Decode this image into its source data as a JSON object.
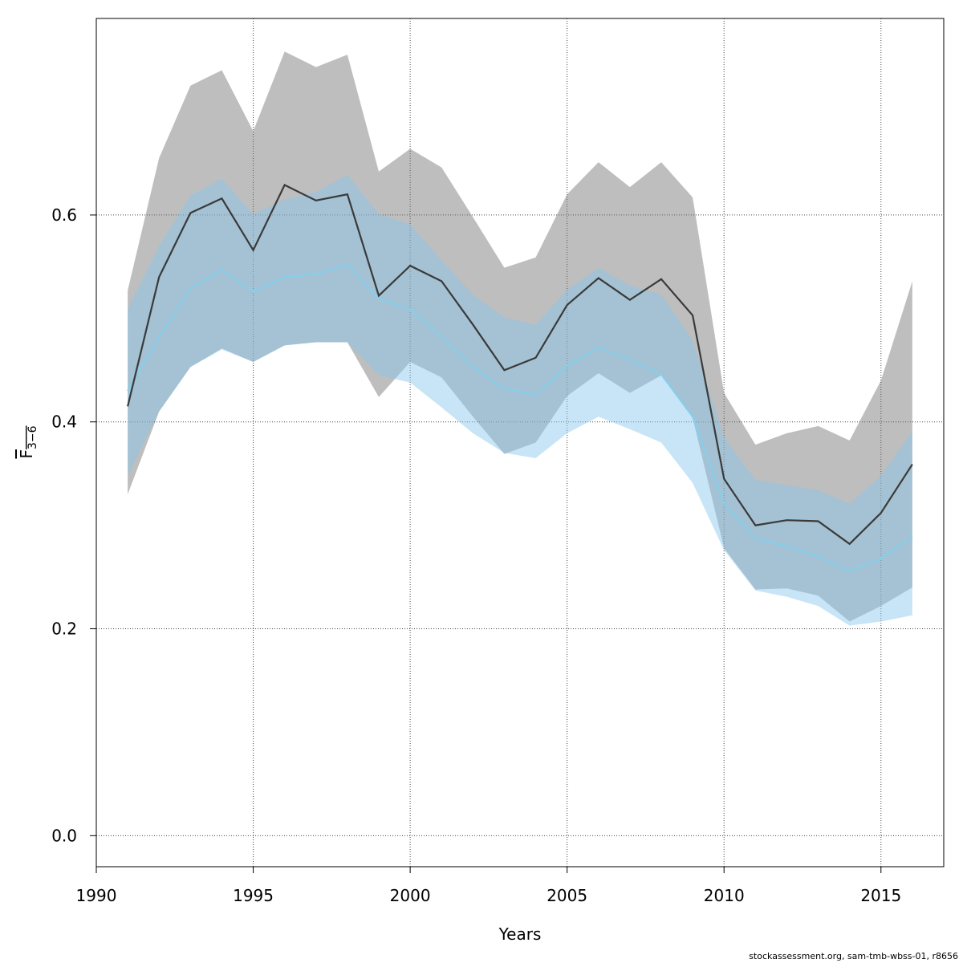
{
  "chart_data": {
    "type": "area",
    "xlabel": "Years",
    "ylabel": "F",
    "ylabel_subscript": "3−6",
    "xlim": [
      1990,
      2017
    ],
    "ylim": [
      -0.03,
      0.79
    ],
    "xticks": [
      1990,
      1995,
      2000,
      2005,
      2010,
      2015
    ],
    "yticks": [
      0.0,
      0.2,
      0.4,
      0.6
    ],
    "ytick_labels": [
      "0.0",
      "0.2",
      "0.4",
      "0.6"
    ],
    "grid": true,
    "x": [
      1991,
      1992,
      1993,
      1994,
      1995,
      1996,
      1997,
      1998,
      1999,
      2000,
      2001,
      2002,
      2003,
      2004,
      2005,
      2006,
      2007,
      2008,
      2009,
      2010,
      2011,
      2012,
      2013,
      2014,
      2015,
      2016
    ],
    "series": [
      {
        "role": "primary",
        "color": "#3a3a3a",
        "band_color": "rgba(110,110,110,0.45)",
        "values": [
          0.415,
          0.54,
          0.602,
          0.616,
          0.566,
          0.629,
          0.614,
          0.62,
          0.522,
          0.551,
          0.536,
          0.494,
          0.45,
          0.462,
          0.513,
          0.539,
          0.518,
          0.538,
          0.503,
          0.345,
          0.3,
          0.305,
          0.304,
          0.282,
          0.312,
          0.359
        ],
        "lower": [
          0.33,
          0.41,
          0.453,
          0.471,
          0.458,
          0.474,
          0.477,
          0.477,
          0.424,
          0.458,
          0.443,
          0.405,
          0.369,
          0.38,
          0.425,
          0.447,
          0.428,
          0.445,
          0.404,
          0.278,
          0.238,
          0.239,
          0.232,
          0.207,
          0.222,
          0.24
        ],
        "upper": [
          0.527,
          0.655,
          0.725,
          0.74,
          0.681,
          0.758,
          0.743,
          0.755,
          0.642,
          0.664,
          0.646,
          0.598,
          0.549,
          0.559,
          0.62,
          0.651,
          0.627,
          0.651,
          0.617,
          0.428,
          0.378,
          0.389,
          0.396,
          0.382,
          0.44,
          0.536
        ]
      },
      {
        "role": "secondary",
        "color": "#87ceeb",
        "band_color": "rgba(135,200,235,0.47)",
        "values": [
          0.43,
          0.482,
          0.529,
          0.547,
          0.526,
          0.54,
          0.543,
          0.552,
          0.519,
          0.509,
          0.482,
          0.453,
          0.432,
          0.426,
          0.454,
          0.472,
          0.46,
          0.446,
          0.405,
          0.321,
          0.287,
          0.28,
          0.27,
          0.256,
          0.268,
          0.289
        ],
        "lower": [
          0.348,
          0.41,
          0.453,
          0.47,
          0.458,
          0.474,
          0.477,
          0.477,
          0.445,
          0.438,
          0.414,
          0.389,
          0.37,
          0.365,
          0.389,
          0.405,
          0.393,
          0.38,
          0.341,
          0.276,
          0.237,
          0.231,
          0.222,
          0.203,
          0.207,
          0.213
        ],
        "upper": [
          0.509,
          0.57,
          0.619,
          0.635,
          0.601,
          0.615,
          0.622,
          0.639,
          0.601,
          0.591,
          0.556,
          0.523,
          0.501,
          0.494,
          0.528,
          0.549,
          0.532,
          0.523,
          0.479,
          0.385,
          0.344,
          0.339,
          0.334,
          0.321,
          0.348,
          0.391
        ]
      }
    ]
  },
  "footer": "stockassessment.org, sam-tmb-wbss-01, r8656"
}
